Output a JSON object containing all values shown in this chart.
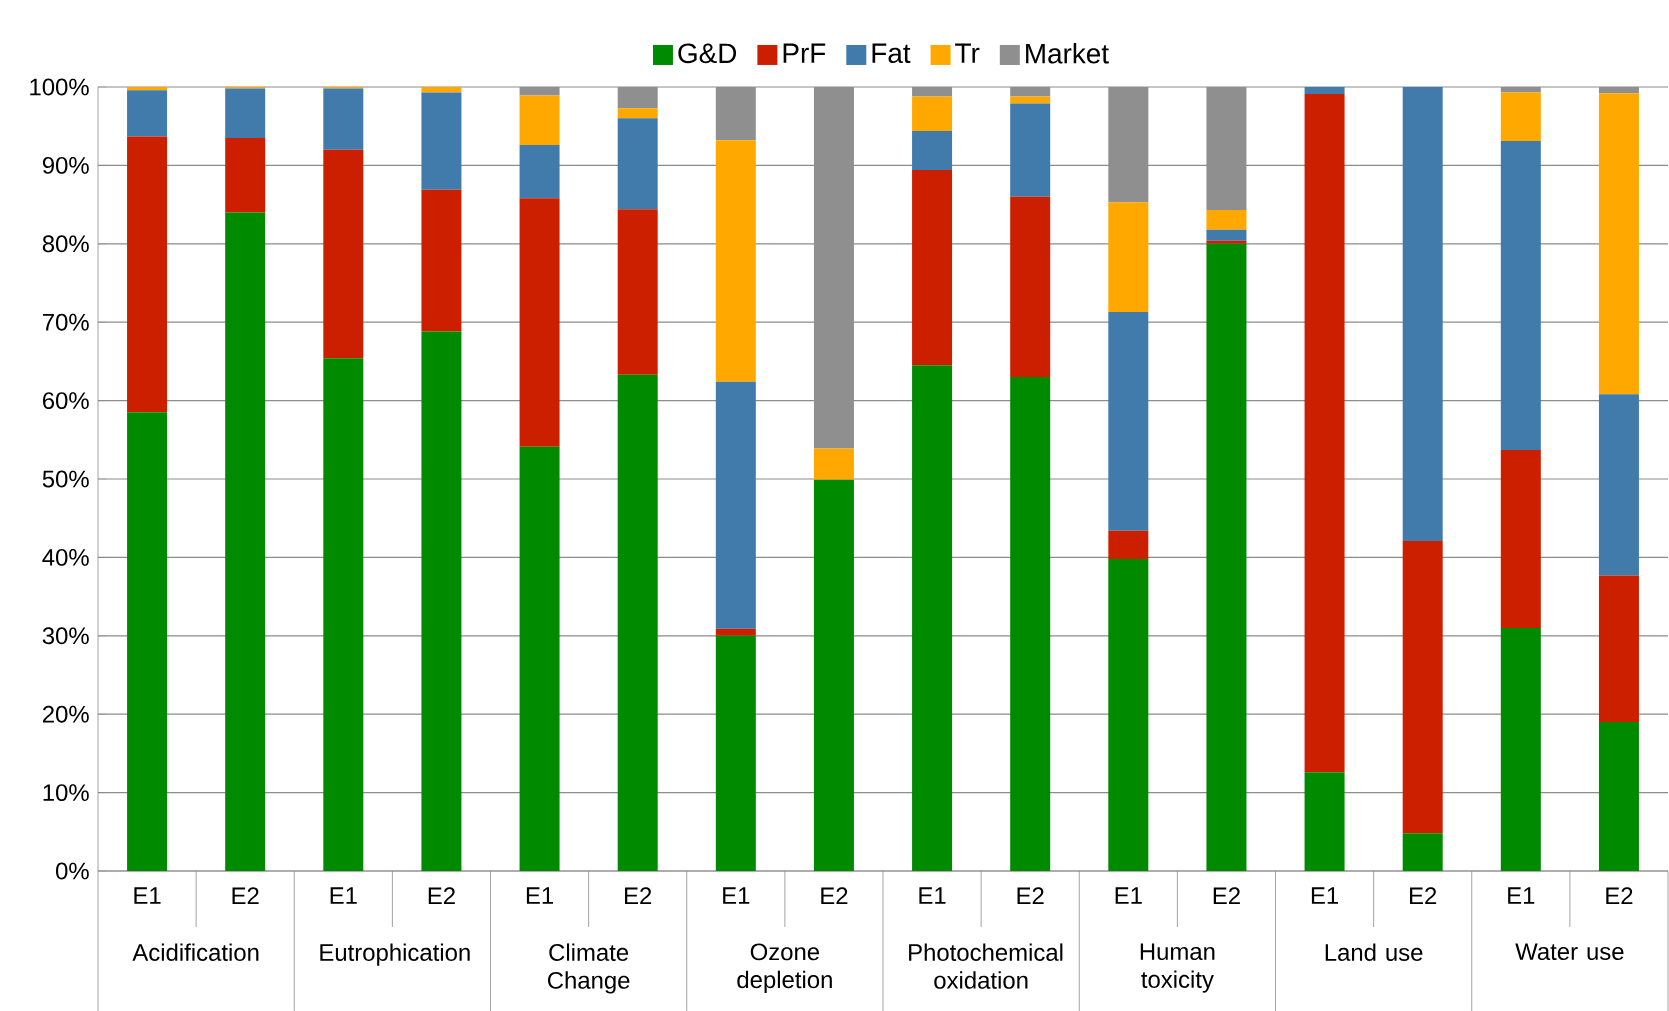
{
  "chart_data": {
    "type": "bar",
    "stacked": true,
    "categories": [
      "E1",
      "E2",
      "E1",
      "E2",
      "E1",
      "E2",
      "E1",
      "E2",
      "E1",
      "E2",
      "E1",
      "E2",
      "E1",
      "E2",
      "E1",
      "E2"
    ],
    "annotations": [
      "Acidification",
      "Eutrophication",
      "Climate Change",
      "Ozone depletion",
      "Photochemical oxidation",
      "Human toxicity",
      "Land use",
      "Water use"
    ],
    "series": [
      {
        "name": "G&D",
        "color": "#008a00",
        "values": [
          58.5,
          84,
          65.4,
          68.8,
          54.1,
          63.3,
          30,
          49.9,
          64.5,
          63,
          39.8,
          80,
          12.6,
          4.8,
          31,
          19
        ]
      },
      {
        "name": "PrF",
        "color": "#cc1f00",
        "values": [
          35.2,
          9.5,
          26.6,
          18.1,
          31.7,
          21.1,
          0.9,
          0,
          24.9,
          23,
          3.6,
          0.4,
          86.5,
          37.3,
          22.7,
          18.7
        ]
      },
      {
        "name": "Fat",
        "color": "#407bab",
        "values": [
          5.9,
          6.3,
          7.8,
          12.4,
          6.8,
          11.6,
          31.5,
          0,
          5,
          11.9,
          27.9,
          1.4,
          0.9,
          57.9,
          39.4,
          23.1
        ]
      },
      {
        "name": "Tr",
        "color": "#ffa800",
        "values": [
          0.4,
          0.2,
          0.2,
          0.7,
          6.3,
          1.3,
          30.8,
          4,
          4.4,
          0.9,
          14,
          2.5,
          0,
          0,
          6.2,
          38.4
        ]
      },
      {
        "name": "Market",
        "color": "#8f8f8f",
        "values": [
          0,
          0,
          0,
          0,
          1.1,
          2.7,
          6.8,
          46.1,
          1.2,
          1.2,
          14.7,
          15.7,
          0,
          0,
          0.7,
          0.8
        ]
      }
    ],
    "ylim": [
      0,
      100
    ],
    "yticks": [
      {
        "value": 0,
        "label": "0%"
      },
      {
        "value": 10,
        "label": "10%"
      },
      {
        "value": 20,
        "label": "20%"
      },
      {
        "value": 30,
        "label": "30%"
      },
      {
        "value": 40,
        "label": "40%"
      },
      {
        "value": 50,
        "label": "50%"
      },
      {
        "value": 60,
        "label": "60%"
      },
      {
        "value": 70,
        "label": "70%"
      },
      {
        "value": 80,
        "label": "80%"
      },
      {
        "value": 90,
        "label": "90%"
      },
      {
        "value": 100,
        "label": "100%"
      }
    ],
    "grid": "y",
    "legend": "top"
  }
}
